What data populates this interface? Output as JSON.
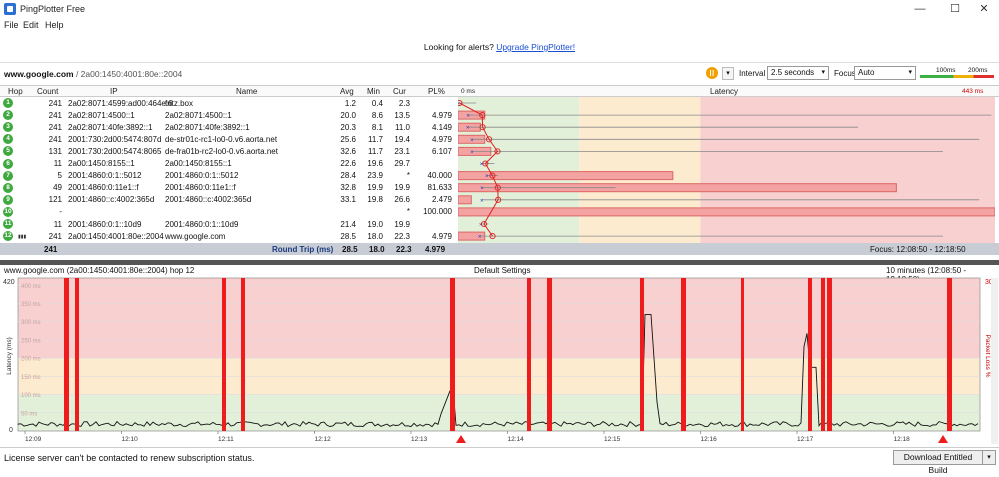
{
  "window": {
    "title": "PingPlotter Free",
    "minimize": "—",
    "maximize": "☐",
    "close": "✕"
  },
  "menu": {
    "file": "File",
    "edit": "Edit",
    "help": "Help"
  },
  "alert": {
    "text": "Looking for alerts? ",
    "link": "Upgrade PingPlotter!"
  },
  "toolbar": {
    "target_host": "www.google.com",
    "target_ip": " / 2a00:1450:4001:80e::2004",
    "interval_label": "Interval",
    "interval_value": "2.5 seconds",
    "focus_label": "Focus",
    "focus_value": "Auto",
    "scale_100": "100ms",
    "scale_200": "200ms",
    "colors": {
      "good": "#3cb043",
      "warn": "#f0b000",
      "bad": "#e03030"
    }
  },
  "grid": {
    "headers": {
      "hop": "Hop",
      "count": "Count",
      "ip": "IP",
      "name": "Name",
      "avg": "Avg",
      "min": "Min",
      "cur": "Cur",
      "pl": "PL%",
      "latency": "Latency"
    },
    "latency_start": "0 ms",
    "latency_end": "443 ms",
    "rows": [
      {
        "hop": "1",
        "count": "241",
        "ip": "2a02:8071:4599:ad00:464e:6",
        "name": "fritz.box",
        "avg": "1.2",
        "min": "0.4",
        "cur": "2.3",
        "pl": "",
        "avg_ms": 1.2,
        "min_ms": 0.4,
        "max_ms": 15,
        "pl_val": 0
      },
      {
        "hop": "2",
        "count": "241",
        "ip": "2a02:8071:4500::1",
        "name": "2a02:8071:4500::1",
        "avg": "20.0",
        "min": "8.6",
        "cur": "13.5",
        "pl": "4.979",
        "avg_ms": 20.0,
        "min_ms": 8.6,
        "max_ms": 440,
        "pl_val": 4.979
      },
      {
        "hop": "3",
        "count": "241",
        "ip": "2a02:8071:40fe:3892::1",
        "name": "2a02:8071:40fe:3892::1",
        "avg": "20.3",
        "min": "8.1",
        "cur": "11.0",
        "pl": "4.149",
        "avg_ms": 20.3,
        "min_ms": 8.1,
        "max_ms": 330,
        "pl_val": 4.149
      },
      {
        "hop": "4",
        "count": "241",
        "ip": "2001:730:2d00:5474:807d",
        "name": "de-str01c-rc1-lo0-0.v6.aorta.net",
        "avg": "25.6",
        "min": "11.7",
        "cur": "19.4",
        "pl": "4.979",
        "avg_ms": 25.6,
        "min_ms": 11.7,
        "max_ms": 430,
        "pl_val": 4.979
      },
      {
        "hop": "5",
        "count": "131",
        "ip": "2001:730:2d00:5474:8065",
        "name": "de-fra01b-rc2-lo0-0.v6.aorta.net",
        "avg": "32.6",
        "min": "11.7",
        "cur": "23.1",
        "pl": "6.107",
        "avg_ms": 32.6,
        "min_ms": 11.7,
        "max_ms": 400,
        "pl_val": 6.107
      },
      {
        "hop": "6",
        "count": "11",
        "ip": "2a00:1450:8155::1",
        "name": "2a00:1450:8155::1",
        "avg": "22.6",
        "min": "19.6",
        "cur": "29.7",
        "pl": "",
        "avg_ms": 22.6,
        "min_ms": 19.6,
        "max_ms": 30,
        "pl_val": 0
      },
      {
        "hop": "7",
        "count": "5",
        "ip": "2001:4860:0:1::5012",
        "name": "2001:4860:0:1::5012",
        "avg": "28.4",
        "min": "23.9",
        "cur": "*",
        "pl": "40.000",
        "avg_ms": 28.4,
        "min_ms": 23.9,
        "max_ms": 33,
        "pl_val": 40
      },
      {
        "hop": "8",
        "count": "49",
        "ip": "2001:4860:0:11e1::f",
        "name": "2001:4860:0:11e1::f",
        "avg": "32.8",
        "min": "19.9",
        "cur": "19.9",
        "pl": "81.633",
        "avg_ms": 32.8,
        "min_ms": 19.9,
        "max_ms": 130,
        "pl_val": 81.633
      },
      {
        "hop": "9",
        "count": "121",
        "ip": "2001:4860::c:4002:365d",
        "name": "2001:4860::c:4002:365d",
        "avg": "33.1",
        "min": "19.8",
        "cur": "26.6",
        "pl": "2.479",
        "avg_ms": 33.1,
        "min_ms": 19.8,
        "max_ms": 430,
        "pl_val": 2.479
      },
      {
        "hop": "10",
        "count": "-",
        "ip": "",
        "name": "",
        "avg": "",
        "min": "",
        "cur": "*",
        "pl": "100.000",
        "avg_ms": null,
        "min_ms": null,
        "max_ms": null,
        "pl_val": 100
      },
      {
        "hop": "11",
        "count": "11",
        "ip": "2001:4860:0:1::10d9",
        "name": "2001:4860:0:1::10d9",
        "avg": "21.4",
        "min": "19.0",
        "cur": "19.9",
        "pl": "",
        "avg_ms": 21.4,
        "min_ms": 19.0,
        "max_ms": 25,
        "pl_val": 0
      },
      {
        "hop": "12",
        "count": "241",
        "ip": "2a00:1450:4001:80e::2004",
        "name": "www.google.com",
        "avg": "28.5",
        "min": "18.0",
        "cur": "22.3",
        "pl": "4.979",
        "avg_ms": 28.5,
        "min_ms": 18.0,
        "max_ms": 400,
        "pl_val": 4.979
      }
    ],
    "round_trip": {
      "count": "241",
      "label": "Round Trip (ms)",
      "avg": "28.5",
      "min": "18.0",
      "cur": "22.3",
      "pl": "4.979",
      "focus": "Focus: 12:08:50 - 12:18:50"
    }
  },
  "timeline": {
    "title_left": "www.google.com (2a00:1450:4001:80e::2004) hop 12",
    "title_center": "Default Settings",
    "title_right": "10 minutes (12:08:50 - 12:18:50)",
    "y_max": "420",
    "y_min": "0",
    "y_ticks": [
      "400 ms",
      "350 ms",
      "300 ms",
      "250 ms",
      "200 ms",
      "150 ms",
      "100 ms",
      "50 ms"
    ],
    "ylabel": "Latency (ms)",
    "y2label": "Packet Loss %",
    "y2_max": "30",
    "times": [
      "12:09",
      "12:10",
      "12:11",
      "12:12",
      "12:13",
      "12:14",
      "12:15",
      "12:16",
      "12:17",
      "12:18"
    ]
  },
  "status": {
    "message": "License server can't be contacted to renew subscription status.",
    "button": "Download Entitled Build",
    "caret": "▾"
  }
}
